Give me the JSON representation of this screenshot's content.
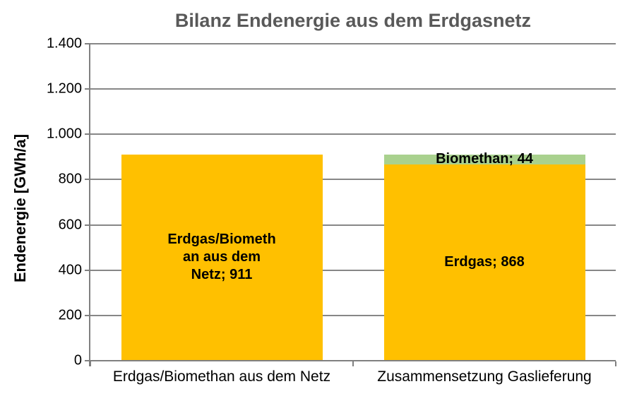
{
  "chart_data": {
    "type": "bar",
    "stacked": true,
    "title": "Bilanz Endenergie aus dem Erdgasnetz",
    "ylabel": "Endenergie [GWh/a]",
    "xlabel": "",
    "ylim": [
      0,
      1400
    ],
    "ytick_step": 200,
    "ytick_labels": [
      "1.400",
      "1.200",
      "1.000",
      "800",
      "600",
      "400",
      "200",
      "0"
    ],
    "grid": true,
    "legend": "none",
    "categories": [
      "Erdgas/Biomethan aus dem Netz",
      "Zusammensetzung Gaslieferung"
    ],
    "series": [
      {
        "name": "Erdgas/Biomethan aus dem Netz",
        "color": "#FFC000",
        "values": [
          911,
          0
        ]
      },
      {
        "name": "Erdgas",
        "color": "#FFC000",
        "values": [
          0,
          868
        ]
      },
      {
        "name": "Biomethan",
        "color": "#A9D18E",
        "values": [
          0,
          44
        ]
      }
    ],
    "data_labels": [
      {
        "category_index": 0,
        "segment": "Erdgas/Biomethan aus dem Netz",
        "lines": [
          "Erdgas/Biometh",
          "an aus dem",
          "Netz; 911"
        ]
      },
      {
        "category_index": 1,
        "segment": "Erdgas",
        "lines": [
          "Erdgas; 868"
        ]
      },
      {
        "category_index": 1,
        "segment": "Biomethan",
        "lines": [
          "Biomethan; 44"
        ]
      }
    ],
    "colors": {
      "erdgas": "#FFC000",
      "biomethan": "#A9D18E",
      "gridline": "#878787",
      "axis": "#808080",
      "title": "#595959",
      "label_text": "#000000"
    }
  }
}
